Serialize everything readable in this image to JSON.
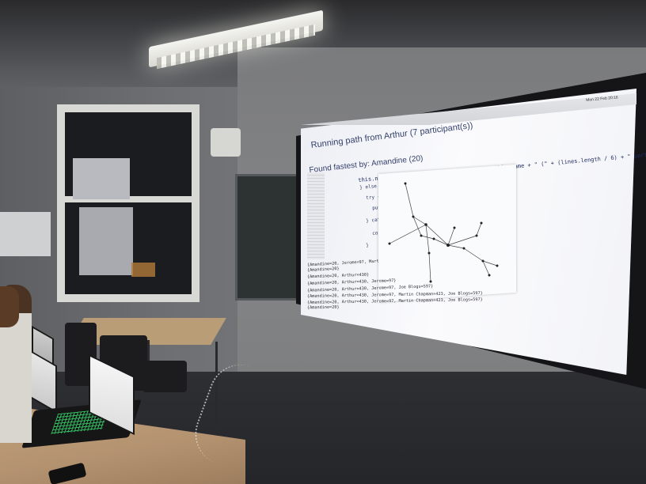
{
  "photo": {
    "projection": {
      "running_text": "Running path from Arthur (7 participant(s))",
      "found_text": "Found fastest by: Amandine (20)",
      "code_line": "this.name.contact(\"Running path from \" + this.name + \" (\" + (lines.length / 6) + \" participant(s))\");",
      "code_snippets": [
        "} else if (",
        "try {",
        "put",
        "} catch",
        "con",
        "}"
      ],
      "menu_clock": "Mon 22 Feb  20:16",
      "output_lines": [
        "{Amandine=20, Jerome=97, Mart",
        "{Amandine=20}",
        "{Amandine=20, Arthur=430}",
        "{Amandine=20, Arthur=430, Jerome=97}",
        "{Amandine=20, Arthur=430, Jerome=97, Joe Blogs=597}",
        "{Amandine=20, Arthur=430, Jerome=97, Martin Chapman=423, Joe Blogs=597}",
        "{Amandine=20, Arthur=430, Jerome=97, Martin Chapman=423, Joe Blogs=597}",
        "{Amandine=20}"
      ]
    }
  },
  "colors": {
    "screen": "#f6f7fa",
    "code_text": "#1e2a60",
    "laptop_keys": "#3cf27a",
    "desk": "#b89d77"
  }
}
